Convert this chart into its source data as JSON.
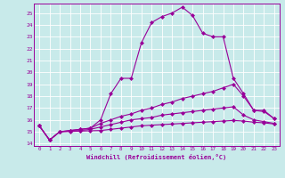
{
  "xlabel": "Windchill (Refroidissement éolien,°C)",
  "bg_color": "#c8eaea",
  "line_color": "#990099",
  "grid_color": "#ffffff",
  "xlim": [
    -0.5,
    23.5
  ],
  "ylim": [
    13.8,
    25.8
  ],
  "xticks": [
    0,
    1,
    2,
    3,
    4,
    5,
    6,
    7,
    8,
    9,
    10,
    11,
    12,
    13,
    14,
    15,
    16,
    17,
    18,
    19,
    20,
    21,
    22,
    23
  ],
  "yticks": [
    14,
    15,
    16,
    17,
    18,
    19,
    20,
    21,
    22,
    23,
    24,
    25
  ],
  "series": [
    {
      "x": [
        0,
        1,
        2,
        3,
        4,
        5,
        6,
        7,
        8,
        9,
        10,
        11,
        12,
        13,
        14,
        15,
        16,
        17,
        18,
        19,
        20,
        21,
        22,
        23
      ],
      "y": [
        15.5,
        14.3,
        15.0,
        15.1,
        15.2,
        15.3,
        16.0,
        18.2,
        19.5,
        19.5,
        22.5,
        24.2,
        24.7,
        25.0,
        25.5,
        24.8,
        23.3,
        23.0,
        23.0,
        19.5,
        18.2,
        16.8,
        16.8,
        16.1
      ]
    },
    {
      "x": [
        0,
        1,
        2,
        3,
        4,
        5,
        6,
        7,
        8,
        9,
        10,
        11,
        12,
        13,
        14,
        15,
        16,
        17,
        18,
        19,
        20,
        21,
        22,
        23
      ],
      "y": [
        15.5,
        14.3,
        15.0,
        15.1,
        15.2,
        15.3,
        15.7,
        16.0,
        16.3,
        16.5,
        16.8,
        17.0,
        17.3,
        17.5,
        17.8,
        18.0,
        18.2,
        18.4,
        18.7,
        19.0,
        18.0,
        16.8,
        16.7,
        16.1
      ]
    },
    {
      "x": [
        0,
        1,
        2,
        3,
        4,
        5,
        6,
        7,
        8,
        9,
        10,
        11,
        12,
        13,
        14,
        15,
        16,
        17,
        18,
        19,
        20,
        21,
        22,
        23
      ],
      "y": [
        15.5,
        14.3,
        15.0,
        15.05,
        15.1,
        15.2,
        15.4,
        15.6,
        15.8,
        16.0,
        16.1,
        16.2,
        16.4,
        16.5,
        16.6,
        16.7,
        16.8,
        16.9,
        17.0,
        17.1,
        16.4,
        16.0,
        15.85,
        15.7
      ]
    },
    {
      "x": [
        0,
        1,
        2,
        3,
        4,
        5,
        6,
        7,
        8,
        9,
        10,
        11,
        12,
        13,
        14,
        15,
        16,
        17,
        18,
        19,
        20,
        21,
        22,
        23
      ],
      "y": [
        15.5,
        14.3,
        15.0,
        15.02,
        15.05,
        15.08,
        15.1,
        15.2,
        15.3,
        15.4,
        15.5,
        15.55,
        15.6,
        15.65,
        15.7,
        15.75,
        15.8,
        15.85,
        15.9,
        15.95,
        15.9,
        15.8,
        15.75,
        15.65
      ]
    }
  ]
}
